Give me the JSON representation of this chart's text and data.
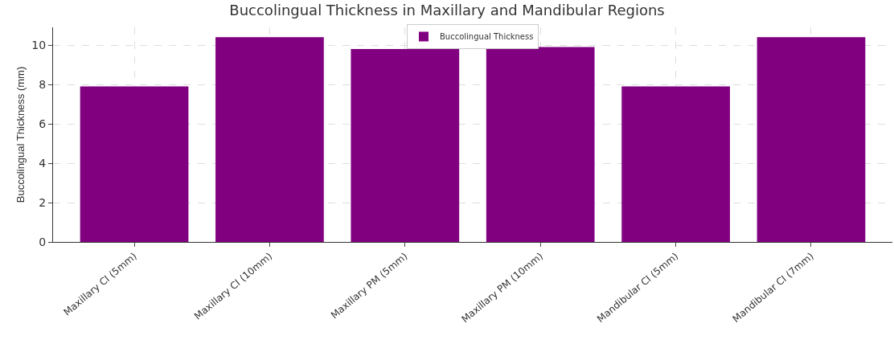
{
  "chart_data": {
    "type": "bar",
    "title": "Buccolingual Thickness in Maxillary and Mandibular Regions",
    "ylabel": "Buccolingual Thickness (mm)",
    "categories": [
      "Maxillary CI (5mm)",
      "Maxillary CI (10mm)",
      "Maxillary PM (5mm)",
      "Maxillary PM (10mm)",
      "Mandibular CI (5mm)",
      "Mandibular CI (7mm)"
    ],
    "series": [
      {
        "name": "Buccolingual Thickness",
        "color": "#800080",
        "values": [
          7.9,
          10.4,
          9.8,
          9.9,
          7.9,
          10.4
        ]
      }
    ],
    "ylim": [
      0,
      10.9
    ],
    "yticks": [
      0,
      2,
      4,
      6,
      8,
      10
    ],
    "grid": true,
    "legend": "top"
  }
}
